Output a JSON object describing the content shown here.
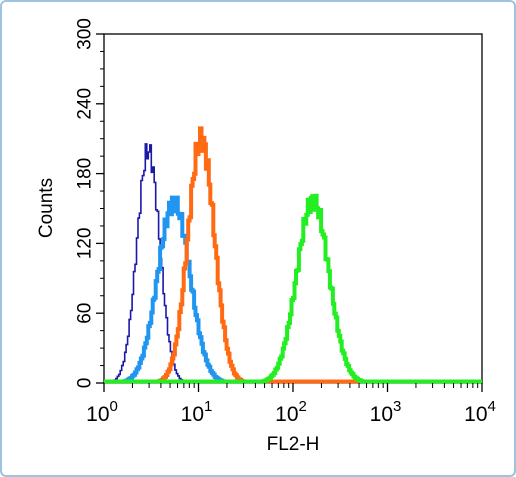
{
  "chart_data": {
    "type": "histogram",
    "xlabel": "FL2-H",
    "ylabel": "Counts",
    "x_scale": "log",
    "xlim": [
      1,
      10000
    ],
    "ylim": [
      0,
      300
    ],
    "x_ticks": [
      {
        "value": 1,
        "base": "10",
        "exp": "0"
      },
      {
        "value": 10,
        "base": "10",
        "exp": "1"
      },
      {
        "value": 100,
        "base": "10",
        "exp": "2"
      },
      {
        "value": 1000,
        "base": "10",
        "exp": "3"
      },
      {
        "value": 10000,
        "base": "10",
        "exp": "4"
      }
    ],
    "y_ticks": [
      "0",
      "60",
      "120",
      "180",
      "240",
      "300"
    ],
    "grid": false,
    "series": [
      {
        "color": "#1a1aa6",
        "stroke": 1.6,
        "center": 2.9,
        "peak": 200,
        "width": 0.12
      },
      {
        "color": "#2196f0",
        "stroke": 4,
        "center": 5.4,
        "peak": 155,
        "width": 0.17
      },
      {
        "color": "#ff6a13",
        "stroke": 4,
        "center": 10.5,
        "peak": 210,
        "width": 0.14
      },
      {
        "color": "#22ee22",
        "stroke": 4,
        "center": 160,
        "peak": 157,
        "width": 0.17
      }
    ]
  }
}
